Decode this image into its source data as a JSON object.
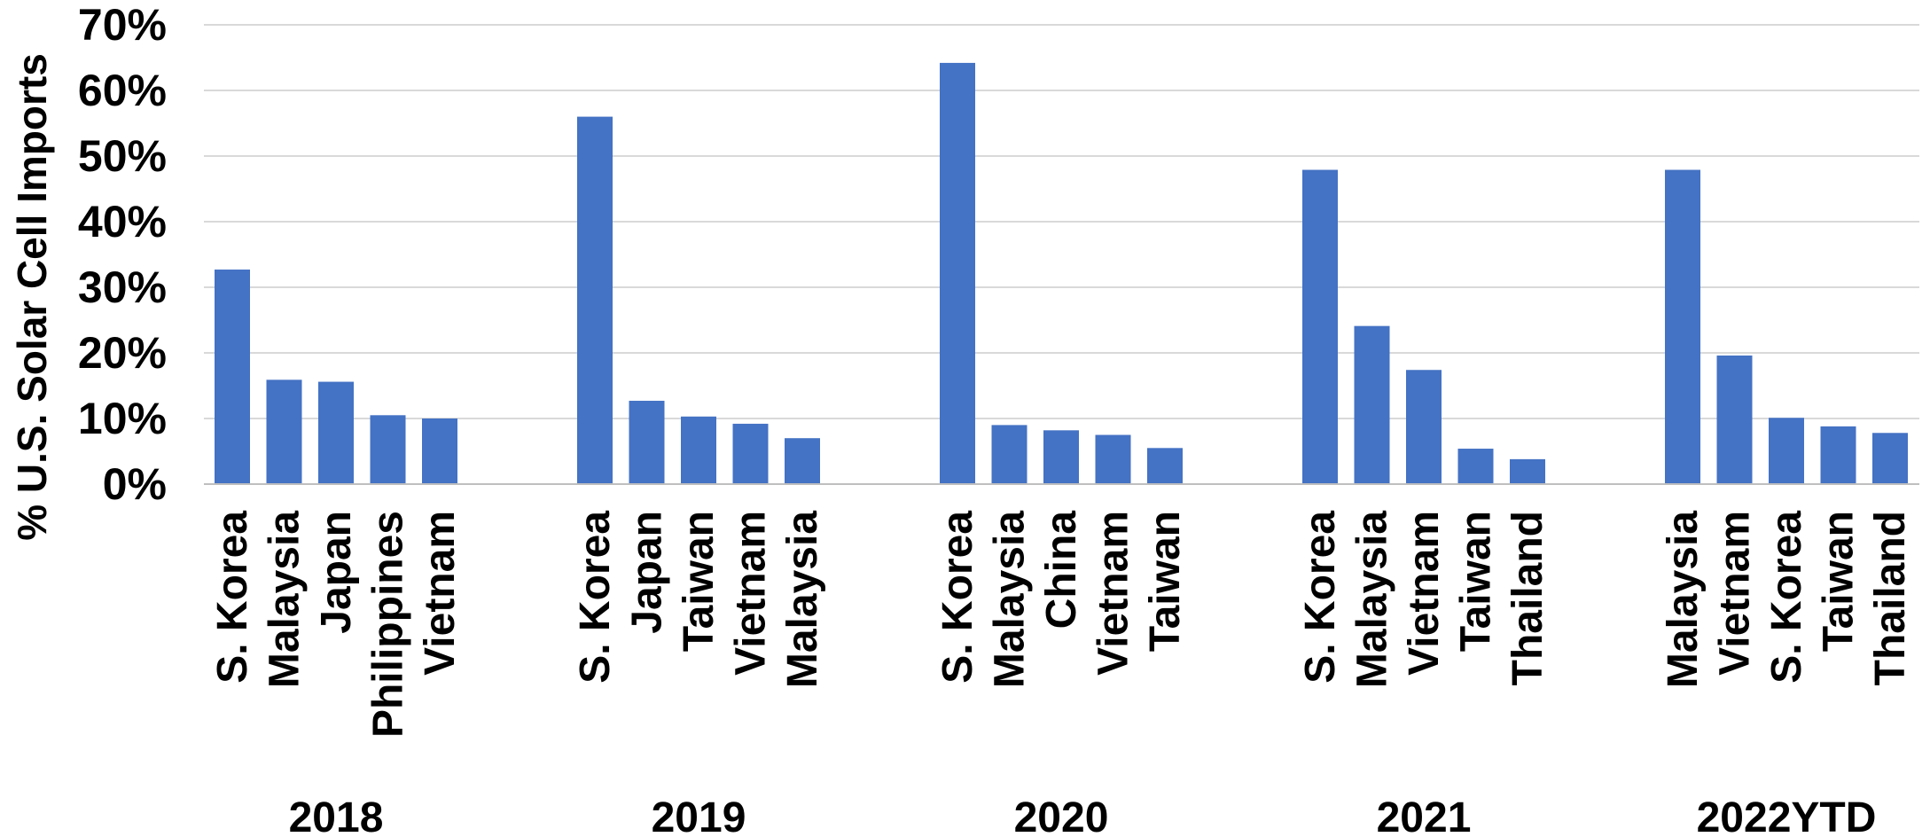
{
  "chart_data": {
    "type": "bar",
    "ylabel": "% U.S. Solar Cell Imports",
    "ylim": [
      0,
      70
    ],
    "yticks": [
      "0%",
      "10%",
      "20%",
      "30%",
      "40%",
      "50%",
      "60%",
      "70%"
    ],
    "grid": true,
    "bar_color": "#4472C4",
    "groups": [
      {
        "label": "2018",
        "categories": [
          "S. Korea",
          "Malaysia",
          "Japan",
          "Philippines",
          "Vietnam"
        ],
        "values": [
          32.7,
          15.9,
          15.6,
          10.5,
          10.0
        ]
      },
      {
        "label": "2019",
        "categories": [
          "S. Korea",
          "Japan",
          "Taiwan",
          "Vietnam",
          "Malaysia"
        ],
        "values": [
          56.0,
          12.7,
          10.3,
          9.2,
          7.0
        ]
      },
      {
        "label": "2020",
        "categories": [
          "S. Korea",
          "Malaysia",
          "China",
          "Vietnam",
          "Taiwan"
        ],
        "values": [
          64.2,
          9.0,
          8.2,
          7.5,
          5.5
        ]
      },
      {
        "label": "2021",
        "categories": [
          "S. Korea",
          "Malaysia",
          "Vietnam",
          "Taiwan",
          "Thailand"
        ],
        "values": [
          47.9,
          24.1,
          17.4,
          5.4,
          3.8
        ]
      },
      {
        "label": "2022YTD",
        "categories": [
          "Malaysia",
          "Vietnam",
          "S. Korea",
          "Taiwan",
          "Thailand"
        ],
        "values": [
          47.9,
          19.6,
          10.1,
          8.8,
          7.8
        ]
      }
    ]
  }
}
